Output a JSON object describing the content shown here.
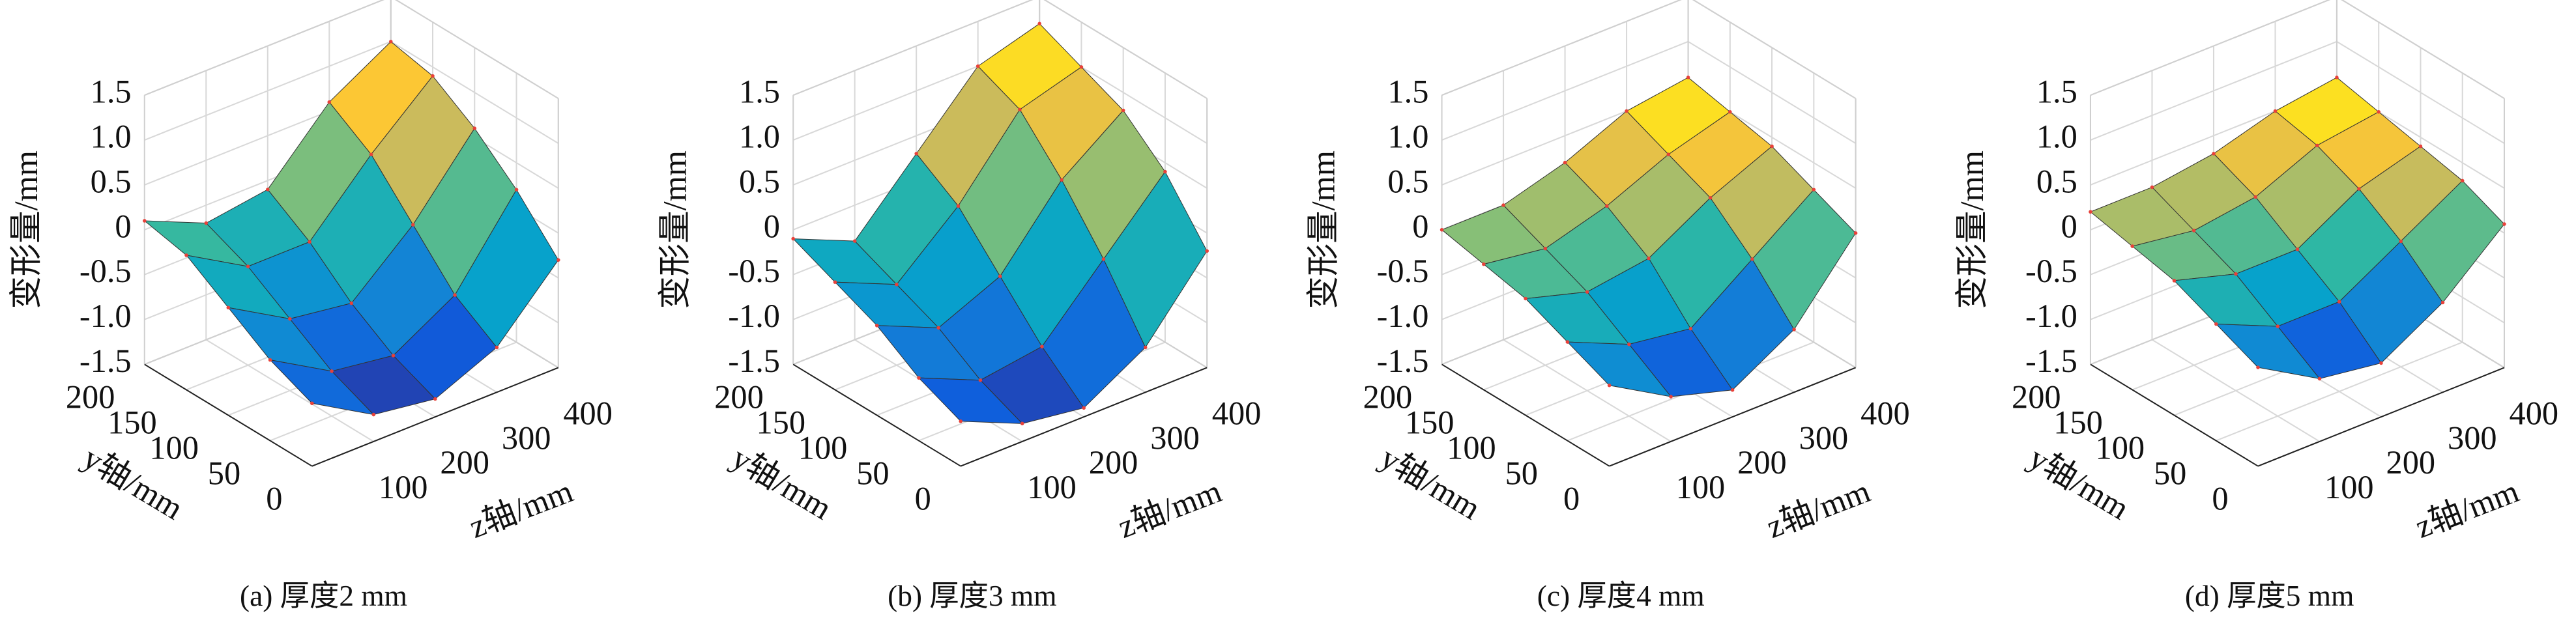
{
  "chart_data": [
    {
      "type": "surface",
      "title": "(a) 厚度2 mm",
      "vlabel": "变形量/mm",
      "ylabel": "y轴/mm",
      "zlabel": "z轴/mm",
      "y": [
        0,
        50,
        100,
        150,
        200
      ],
      "z": [
        0,
        100,
        200,
        300,
        400
      ],
      "values": [
        [
          -0.8,
          -1.2,
          -1.3,
          -1.0,
          -0.3
        ],
        [
          -0.6,
          -1.0,
          -1.1,
          -0.7,
          0.2
        ],
        [
          -0.3,
          -0.7,
          -0.8,
          -0.2,
          0.6
        ],
        [
          0.0,
          -0.4,
          -0.4,
          0.3,
          0.9
        ],
        [
          0.1,
          -0.2,
          -0.1,
          0.6,
          1.0
        ]
      ],
      "ylim": [
        0,
        200
      ],
      "zlim": [
        0,
        400
      ],
      "vlim": [
        -1.5,
        1.5
      ],
      "yticks": [
        0,
        50,
        100,
        150,
        200
      ],
      "zticks": [
        100,
        200,
        300,
        400
      ],
      "vticks": [
        -1.5,
        {
          "value": -1,
          "label": "-1.0"
        },
        -0.5,
        0,
        0.5,
        {
          "value": 1,
          "label": "1.0"
        },
        1.5
      ],
      "grid": true,
      "colormap": [
        "#352a87",
        "#0f5cdd",
        "#1481d6",
        "#06a4ca",
        "#2eb7a4",
        "#87bf77",
        "#d1bb59",
        "#fec832",
        "#f9fb0e"
      ],
      "edge_color": "#333333",
      "vertex_color": "#e8413a"
    },
    {
      "type": "surface",
      "title": "(b) 厚度3 mm",
      "vlabel": "变形量/mm",
      "ylabel": "y轴/mm",
      "zlabel": "z轴/mm",
      "y": [
        0,
        50,
        100,
        150,
        200
      ],
      "z": [
        0,
        100,
        200,
        300,
        400
      ],
      "values": [
        [
          -1.0,
          -1.3,
          -1.4,
          -1.0,
          -0.2
        ],
        [
          -0.8,
          -1.1,
          -1.0,
          -0.3,
          0.4
        ],
        [
          -0.5,
          -0.8,
          -0.5,
          0.3,
          0.8
        ],
        [
          -0.3,
          -0.6,
          0.0,
          0.8,
          1.0
        ],
        [
          -0.1,
          -0.4,
          0.3,
          1.0,
          1.2
        ]
      ],
      "ylim": [
        0,
        200
      ],
      "zlim": [
        0,
        400
      ],
      "vlim": [
        -1.5,
        1.5
      ],
      "yticks": [
        0,
        50,
        100,
        150,
        200
      ],
      "zticks": [
        100,
        200,
        300,
        400
      ],
      "vticks": [
        -1.5,
        {
          "value": -1,
          "label": "-1.0"
        },
        -0.5,
        0,
        0.5,
        {
          "value": 1,
          "label": "1.0"
        },
        1.5
      ],
      "grid": true,
      "colormap": [
        "#352a87",
        "#0f5cdd",
        "#1481d6",
        "#06a4ca",
        "#2eb7a4",
        "#87bf77",
        "#d1bb59",
        "#fec832",
        "#f9fb0e"
      ],
      "edge_color": "#333333",
      "vertex_color": "#e8413a"
    },
    {
      "type": "surface",
      "title": "(c) 厚度4 mm",
      "vlabel": "变形量/mm",
      "ylabel": "y轴/mm",
      "zlabel": "z轴/mm",
      "y": [
        0,
        50,
        100,
        150,
        200
      ],
      "z": [
        0,
        100,
        200,
        300,
        400
      ],
      "values": [
        [
          -0.6,
          -1.0,
          -1.2,
          -0.8,
          0.0
        ],
        [
          -0.4,
          -0.7,
          -0.8,
          -0.3,
          0.2
        ],
        [
          -0.2,
          -0.4,
          -0.3,
          0.1,
          0.4
        ],
        [
          -0.1,
          -0.2,
          0.0,
          0.3,
          0.5
        ],
        [
          0.0,
          0.0,
          0.2,
          0.5,
          0.6
        ]
      ],
      "ylim": [
        0,
        200
      ],
      "zlim": [
        0,
        400
      ],
      "vlim": [
        -1.5,
        1.5
      ],
      "yticks": [
        0,
        50,
        100,
        150,
        200
      ],
      "zticks": [
        100,
        200,
        300,
        400
      ],
      "vticks": [
        -1.5,
        {
          "value": -1,
          "label": "-1.0"
        },
        -0.5,
        0,
        0.5,
        {
          "value": 1,
          "label": "1.0"
        },
        1.5
      ],
      "grid": true,
      "colormap": [
        "#352a87",
        "#0f5cdd",
        "#1481d6",
        "#06a4ca",
        "#2eb7a4",
        "#87bf77",
        "#d1bb59",
        "#fec832",
        "#f9fb0e"
      ],
      "edge_color": "#333333",
      "vertex_color": "#e8413a"
    },
    {
      "type": "surface",
      "title": "(d) 厚度5 mm",
      "vlabel": "变形量/mm",
      "ylabel": "y轴/mm",
      "zlabel": "z轴/mm",
      "y": [
        0,
        50,
        100,
        150,
        200
      ],
      "z": [
        0,
        100,
        200,
        300,
        400
      ],
      "values": [
        [
          -0.4,
          -0.8,
          -0.9,
          -0.5,
          0.1
        ],
        [
          -0.2,
          -0.5,
          -0.5,
          -0.1,
          0.3
        ],
        [
          0.0,
          -0.2,
          -0.2,
          0.2,
          0.4
        ],
        [
          0.1,
          0.0,
          0.1,
          0.4,
          0.5
        ],
        [
          0.2,
          0.2,
          0.3,
          0.5,
          0.6
        ]
      ],
      "ylim": [
        0,
        200
      ],
      "zlim": [
        0,
        400
      ],
      "vlim": [
        -1.5,
        1.5
      ],
      "yticks": [
        0,
        50,
        100,
        150,
        200
      ],
      "zticks": [
        100,
        200,
        300,
        400
      ],
      "vticks": [
        -1.5,
        {
          "value": -1,
          "label": "-1.0"
        },
        -0.5,
        0,
        0.5,
        {
          "value": 1,
          "label": "1.0"
        },
        1.5
      ],
      "grid": true,
      "colormap": [
        "#352a87",
        "#0f5cdd",
        "#1481d6",
        "#06a4ca",
        "#2eb7a4",
        "#87bf77",
        "#d1bb59",
        "#fec832",
        "#f9fb0e"
      ],
      "edge_color": "#333333",
      "vertex_color": "#e8413a"
    }
  ]
}
